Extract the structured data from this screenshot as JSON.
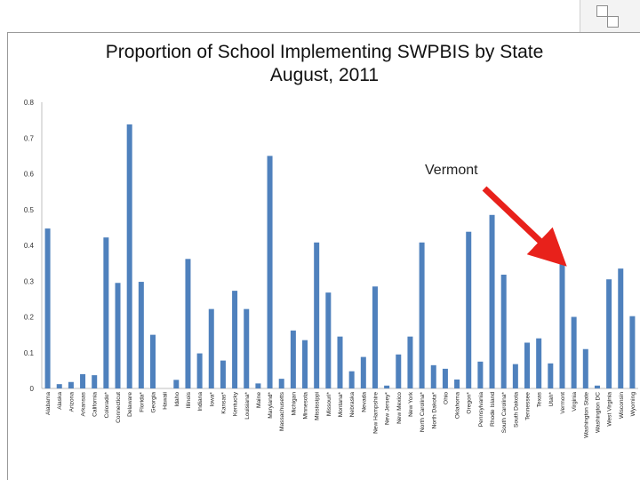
{
  "chart_data": {
    "type": "bar",
    "title_line1": "Proportion of School Implementing SWPBIS by State",
    "title_line2": "August, 2011",
    "ylim": [
      0,
      0.8
    ],
    "yticks": [
      "0",
      "0.1",
      "0.2",
      "0.3",
      "0.4",
      "0.5",
      "0.6",
      "0.7",
      "0.8"
    ],
    "categories": [
      "Alabama",
      "Alaska",
      "Arizona",
      "Arkansas",
      "California",
      "Colorado*",
      "Connecticut",
      "Delaware",
      "Florida*",
      "Georgia",
      "Hawaii",
      "Idaho",
      "Illinois",
      "Indiana",
      "Iowa*",
      "Kansas*",
      "Kentucky",
      "Louisiana*",
      "Maine",
      "Maryland*",
      "Massachusetts",
      "Michigan",
      "Minnesota",
      "Mississippi",
      "Missouri*",
      "Montana*",
      "Nebraska",
      "Nevada",
      "New Hampshire",
      "New Jersey*",
      "New Mexico",
      "New York",
      "North Carolina*",
      "North Dakota*",
      "Ohio",
      "Oklahoma",
      "Oregon*",
      "Pennsylvania",
      "Rhode Island",
      "South Carolina*",
      "South Dakota",
      "Tennessee",
      "Texas",
      "Utah*",
      "Vermont",
      "Virginia",
      "Washington State",
      "Washington DC",
      "West Virginia",
      "Wisconsin",
      "Wyoming"
    ],
    "values": [
      0.447,
      0.012,
      0.018,
      0.04,
      0.037,
      0.422,
      0.295,
      0.738,
      0.298,
      0.15,
      0.0,
      0.024,
      0.362,
      0.098,
      0.222,
      0.078,
      0.273,
      0.222,
      0.014,
      0.65,
      0.027,
      0.162,
      0.135,
      0.408,
      0.268,
      0.145,
      0.048,
      0.088,
      0.285,
      0.008,
      0.095,
      0.145,
      0.408,
      0.065,
      0.055,
      0.025,
      0.438,
      0.075,
      0.485,
      0.318,
      0.068,
      0.128,
      0.14,
      0.07,
      0.352,
      0.2,
      0.11,
      0.008,
      0.305,
      0.335,
      0.202
    ],
    "bar_color": "#4f81bd",
    "annotation": {
      "text": "Vermont",
      "target": "Vermont",
      "arrow_color": "#e8211b"
    }
  }
}
